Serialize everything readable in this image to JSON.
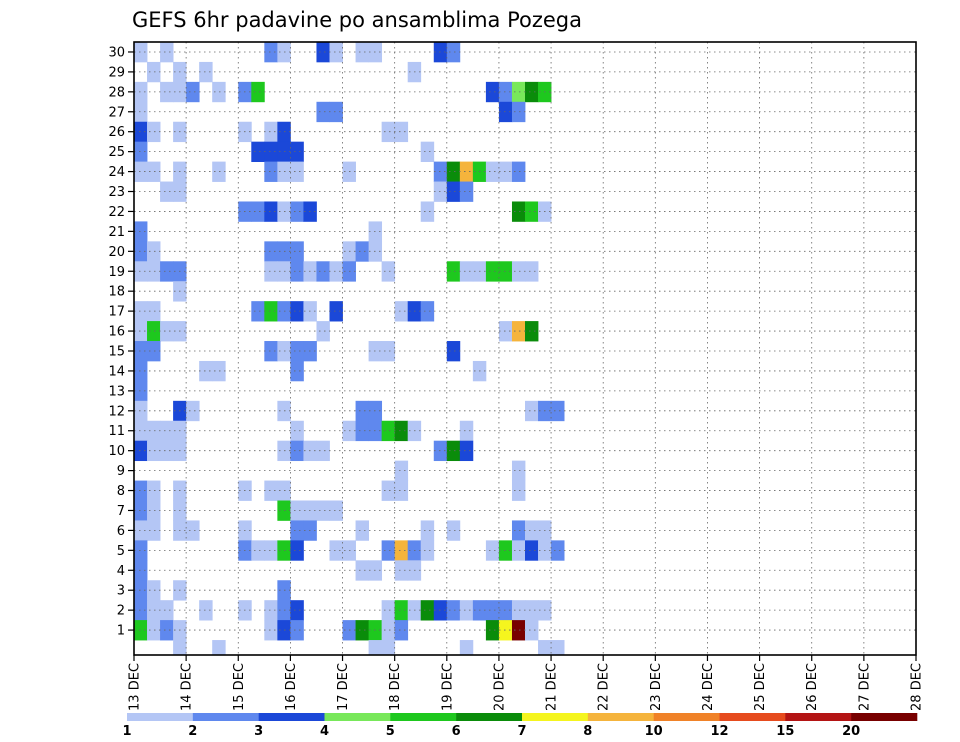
{
  "chart_data": {
    "type": "heatmap",
    "title": "GEFS 6hr padavine po ansamblima Pozega",
    "xlabel": "",
    "ylabel": "",
    "x_ticks": [
      "13 DEC",
      "14 DEC",
      "15 DEC",
      "16 DEC",
      "17 DEC",
      "18 DEC",
      "19 DEC",
      "20 DEC",
      "21 DEC",
      "22 DEC",
      "23 DEC",
      "24 DEC",
      "25 DEC",
      "26 DEC",
      "27 DEC",
      "28 DEC"
    ],
    "y_ticks": [
      1,
      2,
      3,
      4,
      5,
      6,
      7,
      8,
      9,
      10,
      11,
      12,
      13,
      14,
      15,
      16,
      17,
      18,
      19,
      20,
      21,
      22,
      23,
      24,
      25,
      26,
      27,
      28,
      29,
      30
    ],
    "ylim": [
      0,
      30
    ],
    "time_steps": 60,
    "grid": true,
    "legend_placement": "bottom",
    "legend": {
      "labels": [
        "1",
        "2",
        "3",
        "4",
        "5",
        "6",
        "7",
        "8",
        "10",
        "12",
        "15",
        "20"
      ],
      "colors": [
        "#b4c6f5",
        "#5f88ee",
        "#1b48d8",
        "#78e85a",
        "#1ec81e",
        "#0a8c0a",
        "#f5f51e",
        "#f5b43c",
        "#f08228",
        "#e64b1e",
        "#b41414",
        "#780000"
      ]
    },
    "cells": [
      [
        0,
        30,
        1
      ],
      [
        2,
        30,
        1
      ],
      [
        10,
        30,
        2
      ],
      [
        11,
        30,
        1
      ],
      [
        14,
        30,
        3
      ],
      [
        15,
        30,
        1
      ],
      [
        17,
        30,
        1
      ],
      [
        18,
        30,
        1
      ],
      [
        23,
        30,
        3
      ],
      [
        24,
        30,
        2
      ],
      [
        1,
        29,
        1
      ],
      [
        3,
        29,
        1
      ],
      [
        5,
        29,
        1
      ],
      [
        21,
        29,
        1
      ],
      [
        0,
        28,
        1
      ],
      [
        2,
        28,
        1
      ],
      [
        3,
        28,
        1
      ],
      [
        4,
        28,
        2
      ],
      [
        6,
        28,
        1
      ],
      [
        8,
        28,
        2
      ],
      [
        9,
        28,
        5
      ],
      [
        27,
        28,
        3
      ],
      [
        28,
        28,
        2
      ],
      [
        29,
        28,
        4
      ],
      [
        30,
        28,
        6
      ],
      [
        31,
        28,
        5
      ],
      [
        0,
        27,
        1
      ],
      [
        14,
        27,
        2
      ],
      [
        15,
        27,
        2
      ],
      [
        28,
        27,
        3
      ],
      [
        29,
        27,
        2
      ],
      [
        0,
        26,
        3
      ],
      [
        1,
        26,
        1
      ],
      [
        3,
        26,
        1
      ],
      [
        8,
        26,
        1
      ],
      [
        10,
        26,
        1
      ],
      [
        11,
        26,
        3
      ],
      [
        19,
        26,
        1
      ],
      [
        20,
        26,
        1
      ],
      [
        0,
        25,
        2
      ],
      [
        9,
        25,
        3
      ],
      [
        10,
        25,
        3
      ],
      [
        11,
        25,
        3
      ],
      [
        12,
        25,
        3
      ],
      [
        22,
        25,
        1
      ],
      [
        0,
        24,
        1
      ],
      [
        1,
        24,
        1
      ],
      [
        3,
        24,
        1
      ],
      [
        6,
        24,
        1
      ],
      [
        10,
        24,
        2
      ],
      [
        11,
        24,
        1
      ],
      [
        12,
        24,
        1
      ],
      [
        16,
        24,
        1
      ],
      [
        23,
        24,
        2
      ],
      [
        24,
        24,
        6
      ],
      [
        25,
        24,
        8
      ],
      [
        26,
        24,
        5
      ],
      [
        27,
        24,
        1
      ],
      [
        28,
        24,
        1
      ],
      [
        29,
        24,
        2
      ],
      [
        2,
        23,
        1
      ],
      [
        3,
        23,
        1
      ],
      [
        23,
        23,
        1
      ],
      [
        24,
        23,
        3
      ],
      [
        25,
        23,
        2
      ],
      [
        8,
        22,
        2
      ],
      [
        9,
        22,
        2
      ],
      [
        10,
        22,
        3
      ],
      [
        11,
        22,
        1
      ],
      [
        12,
        22,
        2
      ],
      [
        13,
        22,
        3
      ],
      [
        22,
        22,
        1
      ],
      [
        29,
        22,
        6
      ],
      [
        30,
        22,
        5
      ],
      [
        31,
        22,
        1
      ],
      [
        0,
        21,
        2
      ],
      [
        18,
        21,
        1
      ],
      [
        0,
        20,
        2
      ],
      [
        1,
        20,
        1
      ],
      [
        10,
        20,
        2
      ],
      [
        11,
        20,
        2
      ],
      [
        12,
        20,
        2
      ],
      [
        16,
        20,
        1
      ],
      [
        17,
        20,
        2
      ],
      [
        18,
        20,
        1
      ],
      [
        0,
        19,
        1
      ],
      [
        1,
        19,
        1
      ],
      [
        2,
        19,
        2
      ],
      [
        3,
        19,
        2
      ],
      [
        10,
        19,
        1
      ],
      [
        11,
        19,
        1
      ],
      [
        12,
        19,
        2
      ],
      [
        13,
        19,
        1
      ],
      [
        14,
        19,
        2
      ],
      [
        15,
        19,
        1
      ],
      [
        16,
        19,
        2
      ],
      [
        19,
        19,
        1
      ],
      [
        24,
        19,
        5
      ],
      [
        25,
        19,
        1
      ],
      [
        26,
        19,
        1
      ],
      [
        27,
        19,
        5
      ],
      [
        28,
        19,
        5
      ],
      [
        29,
        19,
        1
      ],
      [
        30,
        19,
        1
      ],
      [
        3,
        18,
        1
      ],
      [
        0,
        17,
        1
      ],
      [
        1,
        17,
        1
      ],
      [
        9,
        17,
        2
      ],
      [
        10,
        17,
        5
      ],
      [
        11,
        17,
        2
      ],
      [
        12,
        17,
        3
      ],
      [
        13,
        17,
        1
      ],
      [
        15,
        17,
        3
      ],
      [
        20,
        17,
        1
      ],
      [
        21,
        17,
        3
      ],
      [
        22,
        17,
        2
      ],
      [
        0,
        16,
        1
      ],
      [
        1,
        16,
        5
      ],
      [
        2,
        16,
        1
      ],
      [
        3,
        16,
        1
      ],
      [
        14,
        16,
        1
      ],
      [
        28,
        16,
        1
      ],
      [
        29,
        16,
        8
      ],
      [
        30,
        16,
        6
      ],
      [
        0,
        15,
        2
      ],
      [
        1,
        15,
        2
      ],
      [
        10,
        15,
        2
      ],
      [
        11,
        15,
        1
      ],
      [
        12,
        15,
        2
      ],
      [
        13,
        15,
        2
      ],
      [
        18,
        15,
        1
      ],
      [
        19,
        15,
        1
      ],
      [
        24,
        15,
        3
      ],
      [
        0,
        14,
        2
      ],
      [
        5,
        14,
        1
      ],
      [
        6,
        14,
        1
      ],
      [
        12,
        14,
        2
      ],
      [
        26,
        14,
        1
      ],
      [
        0,
        13,
        2
      ],
      [
        0,
        12,
        1
      ],
      [
        3,
        12,
        3
      ],
      [
        4,
        12,
        1
      ],
      [
        11,
        12,
        1
      ],
      [
        17,
        12,
        2
      ],
      [
        18,
        12,
        2
      ],
      [
        30,
        12,
        1
      ],
      [
        31,
        12,
        2
      ],
      [
        32,
        12,
        2
      ],
      [
        0,
        11,
        1
      ],
      [
        1,
        11,
        1
      ],
      [
        2,
        11,
        1
      ],
      [
        3,
        11,
        1
      ],
      [
        12,
        11,
        1
      ],
      [
        16,
        11,
        1
      ],
      [
        17,
        11,
        2
      ],
      [
        18,
        11,
        2
      ],
      [
        19,
        11,
        5
      ],
      [
        20,
        11,
        6
      ],
      [
        21,
        11,
        1
      ],
      [
        25,
        11,
        1
      ],
      [
        0,
        10,
        3
      ],
      [
        1,
        10,
        1
      ],
      [
        2,
        10,
        1
      ],
      [
        3,
        10,
        1
      ],
      [
        11,
        10,
        1
      ],
      [
        12,
        10,
        2
      ],
      [
        13,
        10,
        1
      ],
      [
        14,
        10,
        1
      ],
      [
        23,
        10,
        2
      ],
      [
        24,
        10,
        6
      ],
      [
        25,
        10,
        3
      ],
      [
        20,
        9,
        1
      ],
      [
        29,
        9,
        1
      ],
      [
        0,
        8,
        2
      ],
      [
        1,
        8,
        1
      ],
      [
        3,
        8,
        1
      ],
      [
        8,
        8,
        1
      ],
      [
        10,
        8,
        1
      ],
      [
        11,
        8,
        1
      ],
      [
        19,
        8,
        1
      ],
      [
        20,
        8,
        1
      ],
      [
        29,
        8,
        1
      ],
      [
        0,
        7,
        2
      ],
      [
        1,
        7,
        1
      ],
      [
        3,
        7,
        1
      ],
      [
        11,
        7,
        5
      ],
      [
        12,
        7,
        1
      ],
      [
        13,
        7,
        1
      ],
      [
        14,
        7,
        1
      ],
      [
        15,
        7,
        1
      ],
      [
        0,
        6,
        1
      ],
      [
        1,
        6,
        1
      ],
      [
        3,
        6,
        1
      ],
      [
        4,
        6,
        1
      ],
      [
        8,
        6,
        1
      ],
      [
        12,
        6,
        2
      ],
      [
        13,
        6,
        2
      ],
      [
        17,
        6,
        1
      ],
      [
        22,
        6,
        1
      ],
      [
        24,
        6,
        1
      ],
      [
        29,
        6,
        2
      ],
      [
        30,
        6,
        1
      ],
      [
        31,
        6,
        1
      ],
      [
        0,
        5,
        2
      ],
      [
        8,
        5,
        2
      ],
      [
        9,
        5,
        1
      ],
      [
        10,
        5,
        1
      ],
      [
        11,
        5,
        5
      ],
      [
        12,
        5,
        3
      ],
      [
        15,
        5,
        1
      ],
      [
        16,
        5,
        1
      ],
      [
        19,
        5,
        2
      ],
      [
        20,
        5,
        8
      ],
      [
        21,
        5,
        2
      ],
      [
        22,
        5,
        1
      ],
      [
        27,
        5,
        1
      ],
      [
        28,
        5,
        5
      ],
      [
        29,
        5,
        1
      ],
      [
        30,
        5,
        3
      ],
      [
        31,
        5,
        1
      ],
      [
        32,
        5,
        2
      ],
      [
        0,
        4,
        2
      ],
      [
        17,
        4,
        1
      ],
      [
        18,
        4,
        1
      ],
      [
        20,
        4,
        1
      ],
      [
        21,
        4,
        1
      ],
      [
        0,
        3,
        2
      ],
      [
        1,
        3,
        1
      ],
      [
        3,
        3,
        1
      ],
      [
        11,
        3,
        2
      ],
      [
        0,
        2,
        2
      ],
      [
        1,
        2,
        1
      ],
      [
        2,
        2,
        1
      ],
      [
        5,
        2,
        1
      ],
      [
        8,
        2,
        1
      ],
      [
        10,
        2,
        1
      ],
      [
        11,
        2,
        2
      ],
      [
        12,
        2,
        3
      ],
      [
        19,
        2,
        1
      ],
      [
        20,
        2,
        5
      ],
      [
        21,
        2,
        1
      ],
      [
        22,
        2,
        6
      ],
      [
        23,
        2,
        3
      ],
      [
        24,
        2,
        2
      ],
      [
        25,
        2,
        1
      ],
      [
        26,
        2,
        2
      ],
      [
        27,
        2,
        2
      ],
      [
        28,
        2,
        2
      ],
      [
        29,
        2,
        1
      ],
      [
        30,
        2,
        1
      ],
      [
        31,
        2,
        1
      ],
      [
        0,
        1,
        5
      ],
      [
        1,
        1,
        1
      ],
      [
        2,
        1,
        2
      ],
      [
        3,
        1,
        1
      ],
      [
        10,
        1,
        1
      ],
      [
        11,
        1,
        3
      ],
      [
        12,
        1,
        2
      ],
      [
        16,
        1,
        2
      ],
      [
        17,
        1,
        6
      ],
      [
        18,
        1,
        5
      ],
      [
        19,
        1,
        1
      ],
      [
        20,
        1,
        2
      ],
      [
        27,
        1,
        6
      ],
      [
        28,
        1,
        7
      ],
      [
        29,
        1,
        12
      ],
      [
        30,
        1,
        1
      ],
      [
        3,
        0,
        1
      ],
      [
        6,
        0,
        1
      ],
      [
        18,
        0,
        1
      ],
      [
        19,
        0,
        1
      ],
      [
        25,
        0,
        1
      ],
      [
        31,
        0,
        1
      ],
      [
        32,
        0,
        1
      ]
    ]
  }
}
